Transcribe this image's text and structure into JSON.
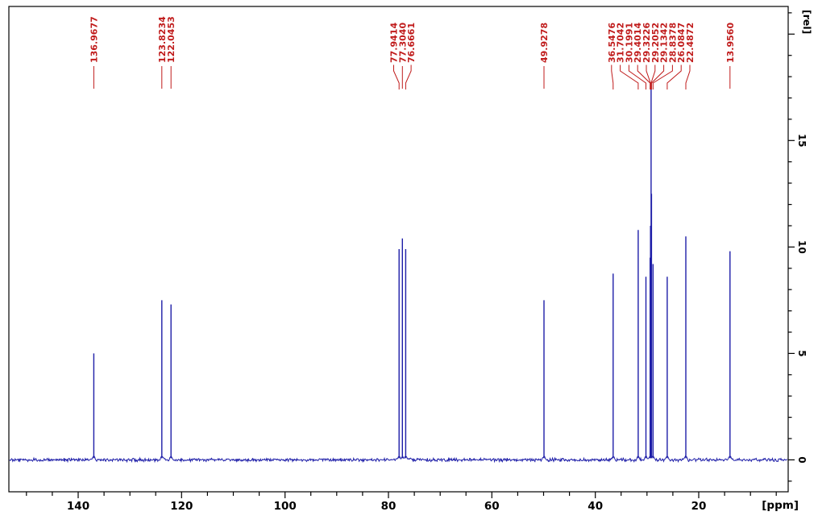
{
  "window": {
    "background": "#ffffff"
  },
  "figure": {
    "trace_color": "#1e1ea8",
    "peak_label_color": "#c01b1b",
    "axis_color": "#000000"
  },
  "chart_data": {
    "type": "line",
    "title": "",
    "xlabel": "[ppm]",
    "ylabel": "[rel]",
    "x_axis": {
      "unit": "[ppm]",
      "min": 2.7,
      "max": 153.4,
      "inverted": true,
      "major_ticks": [
        140,
        120,
        100,
        80,
        60,
        40,
        20
      ],
      "major_tick_step": 20,
      "minor_tick_step": 5
    },
    "y_axis": {
      "unit": "[rel]",
      "min": -1.5,
      "max": 21.3,
      "major_ticks": [
        15,
        10,
        5,
        0
      ],
      "major_tick_step": 5,
      "minor_tick_step": 1
    },
    "grid": false,
    "legend": false,
    "noise_band_rel": 0.08,
    "peaks": [
      {
        "label": "136.9677",
        "ppm": 136.9677,
        "intensity": 5.0
      },
      {
        "label": "123.8234",
        "ppm": 123.8234,
        "intensity": 7.5
      },
      {
        "label": "122.0453",
        "ppm": 122.0453,
        "intensity": 7.3
      },
      {
        "label": "77.9414",
        "ppm": 77.9414,
        "intensity": 9.9
      },
      {
        "label": "77.3040",
        "ppm": 77.304,
        "intensity": 10.4
      },
      {
        "label": "76.6661",
        "ppm": 76.6661,
        "intensity": 9.9
      },
      {
        "label": "49.9278",
        "ppm": 49.9278,
        "intensity": 7.5
      },
      {
        "label": "36.5476",
        "ppm": 36.5476,
        "intensity": 8.75
      },
      {
        "label": "31.7042",
        "ppm": 31.7042,
        "intensity": 10.8
      },
      {
        "label": "30.1991",
        "ppm": 30.1991,
        "intensity": 8.6
      },
      {
        "label": "29.4014",
        "ppm": 29.4014,
        "intensity": 9.5
      },
      {
        "label": "29.3226",
        "ppm": 29.3226,
        "intensity": 11.0
      },
      {
        "label": "29.2052",
        "ppm": 29.2052,
        "intensity": 17.7
      },
      {
        "label": "29.1342",
        "ppm": 29.1342,
        "intensity": 12.5
      },
      {
        "label": "28.8378",
        "ppm": 28.8378,
        "intensity": 9.2
      },
      {
        "label": "26.0847",
        "ppm": 26.0847,
        "intensity": 8.6
      },
      {
        "label": "22.4872",
        "ppm": 22.4872,
        "intensity": 10.5
      },
      {
        "label": "13.9560",
        "ppm": 13.956,
        "intensity": 9.8
      }
    ]
  }
}
